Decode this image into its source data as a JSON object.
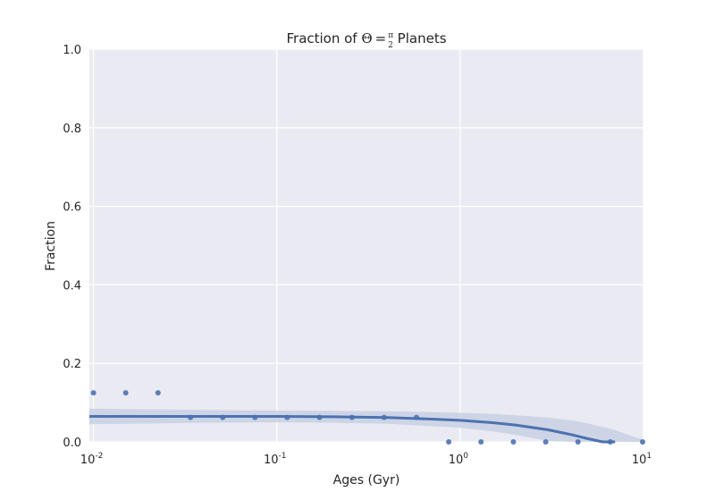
{
  "chart_data": {
    "type": "scatter",
    "title": {
      "prefix": "Fraction of ",
      "symbol": "Θ",
      "equals": "=",
      "frac_num": "π",
      "frac_den": "2",
      "suffix": " Planets"
    },
    "xlabel": "Ages (Gyr)",
    "ylabel": "Fraction",
    "x_scale": "log",
    "xlim": [
      0.0095,
      10
    ],
    "ylim": [
      0,
      1.0
    ],
    "x_ticks": [
      {
        "value": 0.01,
        "base": "10",
        "exp": "-2"
      },
      {
        "value": 0.1,
        "base": "10",
        "exp": "-1"
      },
      {
        "value": 1,
        "base": "10",
        "exp": "0"
      },
      {
        "value": 10,
        "base": "10",
        "exp": "1"
      }
    ],
    "y_ticks": [
      {
        "value": 0.0,
        "label": "0.0"
      },
      {
        "value": 0.2,
        "label": "0.2"
      },
      {
        "value": 0.4,
        "label": "0.4"
      },
      {
        "value": 0.6,
        "label": "0.6"
      },
      {
        "value": 0.8,
        "label": "0.8"
      },
      {
        "value": 1.0,
        "label": "1.0"
      }
    ],
    "grid": true,
    "colors": {
      "background": "#eaeaf2",
      "grid": "#ffffff",
      "points": "#4c72b0",
      "fit_line": "#4c72b0",
      "confidence_band": "#c8d0e4"
    },
    "series": [
      {
        "kind": "scatter",
        "x": [
          0.01,
          0.015,
          0.0225,
          0.0338,
          0.0507,
          0.076,
          0.114,
          0.171,
          0.257,
          0.385,
          0.578,
          0.867,
          1.3,
          1.95,
          2.93,
          4.39,
          6.59,
          9.89
        ],
        "y": [
          0.125,
          0.125,
          0.125,
          0.0625,
          0.0625,
          0.0625,
          0.0625,
          0.0625,
          0.0625,
          0.0625,
          0.0625,
          0,
          0,
          0,
          0,
          0,
          0,
          0
        ]
      },
      {
        "kind": "fit",
        "x": [
          0.0095,
          0.02,
          0.05,
          0.1,
          0.2,
          0.4,
          0.7,
          1.0,
          1.5,
          2.0,
          3.0,
          4.0,
          5.0,
          6.0,
          7.0
        ],
        "y": [
          0.065,
          0.065,
          0.065,
          0.065,
          0.064,
          0.062,
          0.058,
          0.055,
          0.049,
          0.043,
          0.031,
          0.019,
          0.008,
          0.0,
          0.0
        ]
      },
      {
        "kind": "confidence_band",
        "x": [
          0.0095,
          0.02,
          0.05,
          0.1,
          0.2,
          0.4,
          0.7,
          1.0,
          1.5,
          2.0,
          3.0,
          4.0,
          5.0,
          6.0,
          7.0,
          8.0,
          10.0
        ],
        "y_low": [
          0.045,
          0.047,
          0.049,
          0.05,
          0.049,
          0.046,
          0.04,
          0.036,
          0.027,
          0.018,
          0.003,
          0.0,
          0.0,
          0.0,
          0.0,
          0.0,
          0.0
        ],
        "y_high": [
          0.085,
          0.083,
          0.081,
          0.08,
          0.079,
          0.078,
          0.076,
          0.074,
          0.071,
          0.068,
          0.062,
          0.055,
          0.047,
          0.038,
          0.03,
          0.02,
          0.005
        ]
      }
    ]
  }
}
